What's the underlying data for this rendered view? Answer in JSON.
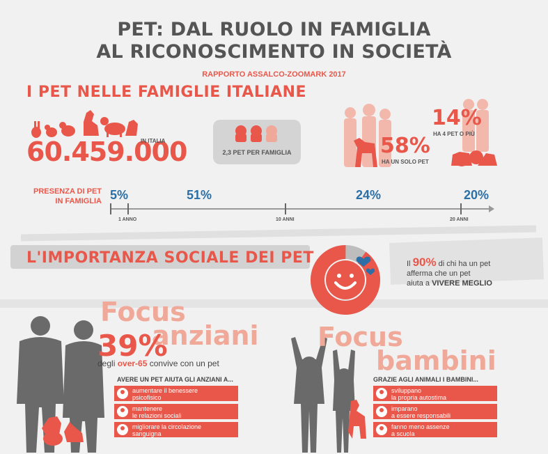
{
  "header": {
    "title_line1": "PET: DAL RUOLO IN FAMIGLIA",
    "title_line2": "AL RICONOSCIMENTO IN SOCIETÀ",
    "subtitle": "RAPPORTO ASSALCO-ZOOMARK 2017"
  },
  "section1": {
    "heading": "I PET NELLE FAMIGLIE ITALIANE",
    "total_number": "60.459.000",
    "total_label": "IN ITALIA",
    "per_family": "2,3 PET PER FAMIGLIA",
    "pct_one": "58%",
    "pct_one_label": "HA UN SOLO PET",
    "pct_many": "14%",
    "pct_many_label": "HA 4 PET O PIÙ"
  },
  "timeline": {
    "label_line1": "PRESENZA DI PET",
    "label_line2": "IN FAMIGLIA",
    "values": [
      "5%",
      "51%",
      "24%",
      "20%"
    ],
    "ticks": [
      "1 ANNO",
      "10 ANNI",
      "20 ANNI"
    ]
  },
  "section2": {
    "heading": "L'IMPORTANZA SOCIALE DEI PET",
    "donut_pct": 90,
    "text_pre": "Il",
    "text_pct": "90%",
    "text_mid": "di chi ha un pet",
    "text_line2": "afferma che un pet",
    "text_line3_pre": "aiuta a",
    "text_line3_bold": "VIVERE MEGLIO"
  },
  "elderly": {
    "focus": "Focus",
    "focus_word": "anziani",
    "pct": "39%",
    "desc_pre": "degli",
    "desc_bold": "over-65",
    "desc_post": "convive con un pet",
    "list_title": "AVERE UN PET AIUTA GLI ANZIANI A...",
    "items": [
      {
        "line1": "aumentare il benessere",
        "line2": "psicofisico"
      },
      {
        "line1": "mantenere",
        "line2": "le relazioni sociali"
      },
      {
        "line1": "migliorare la circolazione",
        "line2": "sanguigna"
      }
    ]
  },
  "children": {
    "focus": "Focus",
    "focus_word": "bambini",
    "list_title": "GRAZIE AGLI ANIMALI I BAMBINI...",
    "items": [
      {
        "line1": "sviluppano",
        "line2": "la propria autostima"
      },
      {
        "line1": "imparano",
        "line2": "a essere responsabili"
      },
      {
        "line1": "fanno meno assenze",
        "line2": "a scuola"
      }
    ]
  },
  "colors": {
    "accent": "#e8574a",
    "blue": "#2c6fa6",
    "grey": "#555555"
  }
}
